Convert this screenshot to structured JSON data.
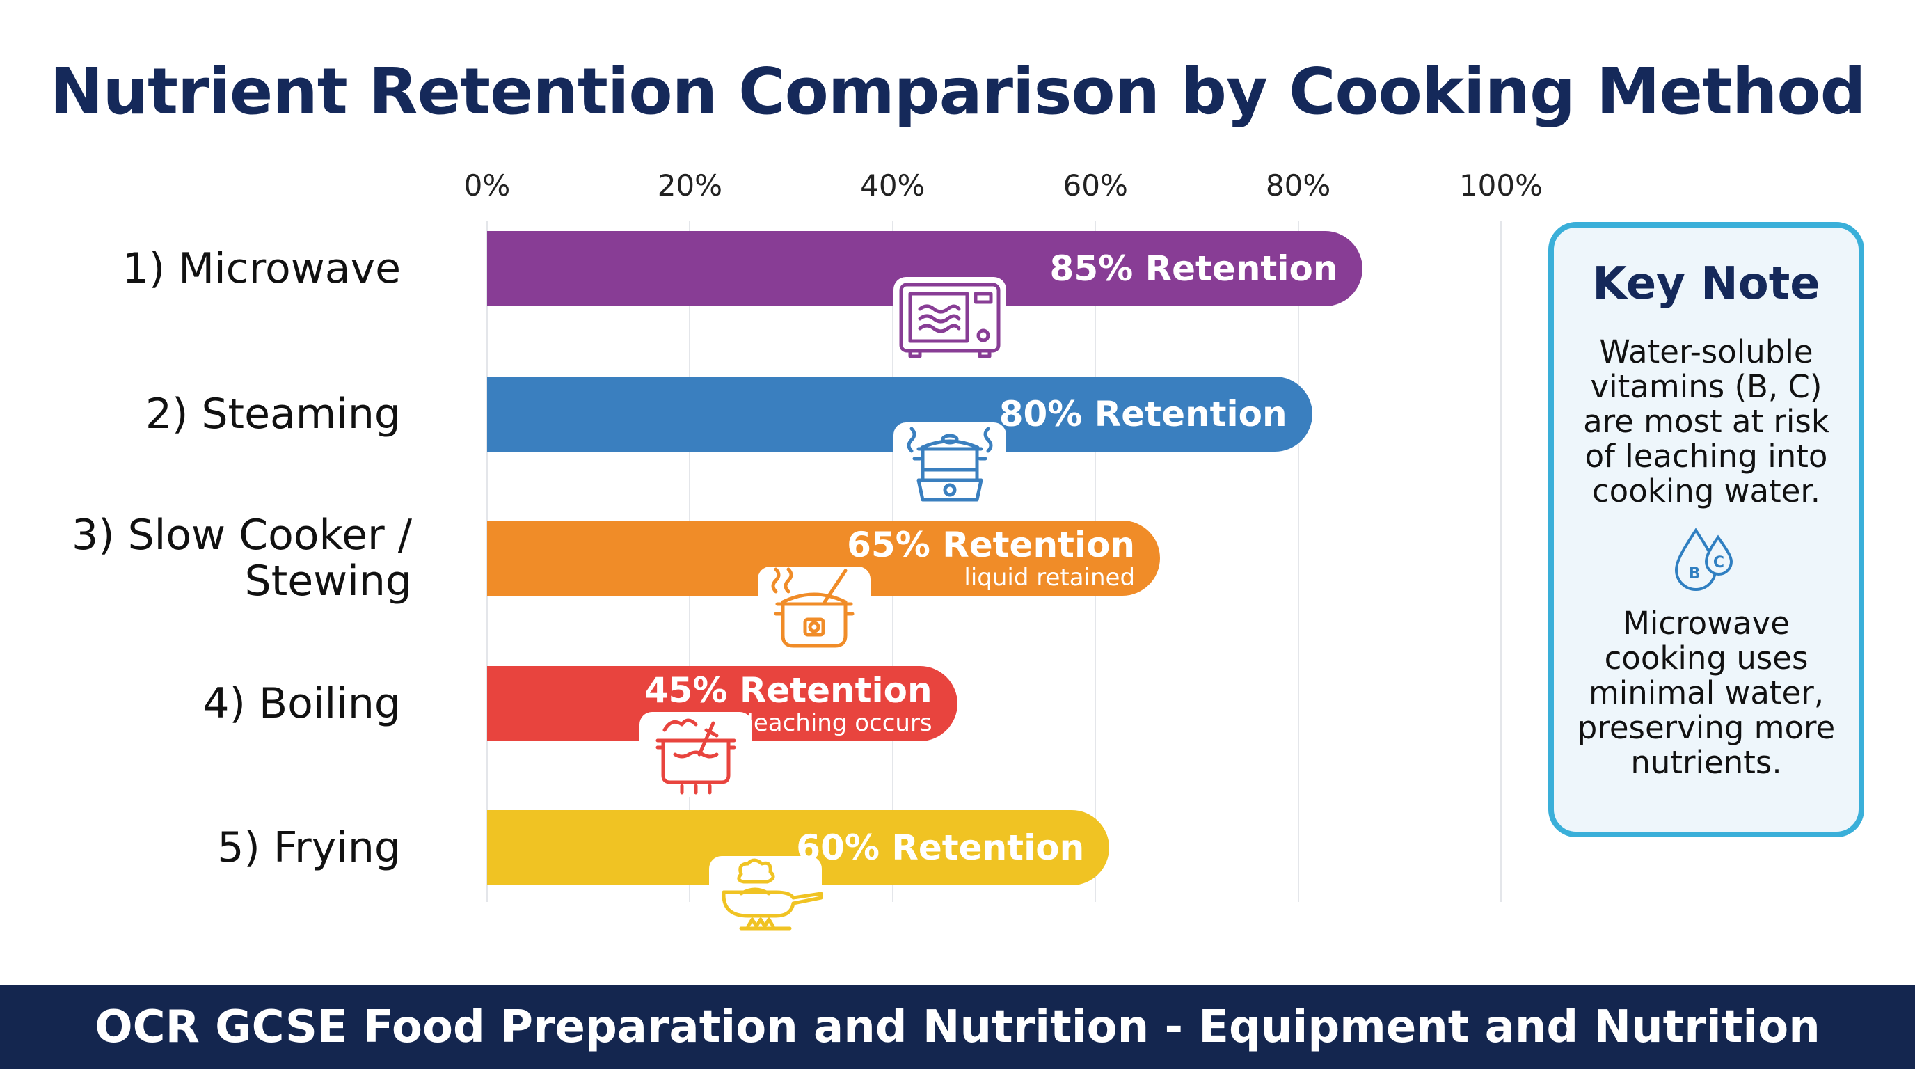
{
  "chart_data": {
    "type": "bar",
    "orientation": "horizontal",
    "title": "Nutrient Retention Comparison by Cooking Method",
    "categories": [
      "1) Microwave",
      "2) Steaming",
      "3) Slow Cooker / Stewing",
      "4) Boiling",
      "5) Frying"
    ],
    "values": [
      85,
      80,
      65,
      45,
      60
    ],
    "data_labels": [
      "85% Retention",
      "80% Retention",
      "65% Retention",
      "45% Retention",
      "60% Retention"
    ],
    "sub_labels": [
      "",
      "",
      "liquid retained",
      "leaching occurs",
      ""
    ],
    "icons": [
      "microwave-icon",
      "steamer-icon",
      "slow-cooker-icon",
      "boiling-pot-icon",
      "frying-pan-icon"
    ],
    "colors": [
      "#883d95",
      "#3a7fbf",
      "#f08c28",
      "#e8443e",
      "#f0c323"
    ],
    "xlim": [
      0,
      100
    ],
    "x_ticks": [
      "0%",
      "20%",
      "40%",
      "60%",
      "80%",
      "100%"
    ],
    "xlabel": "",
    "ylabel": "",
    "grid": true,
    "axis_position": "top"
  },
  "key_note": {
    "title": "Key Note",
    "text1": "Water-soluble vitamins (B, C) are most at risk of leaching into cooking water.",
    "icon": "vitamin-drops-icon",
    "icon_letters": [
      "B",
      "C"
    ],
    "text2": "Microwave cooking uses minimal water, preserving more nutrients.",
    "border_color": "#3aafd9"
  },
  "footer": {
    "text": "OCR GCSE Food Preparation and Nutrition - Equipment and Nutrition"
  }
}
